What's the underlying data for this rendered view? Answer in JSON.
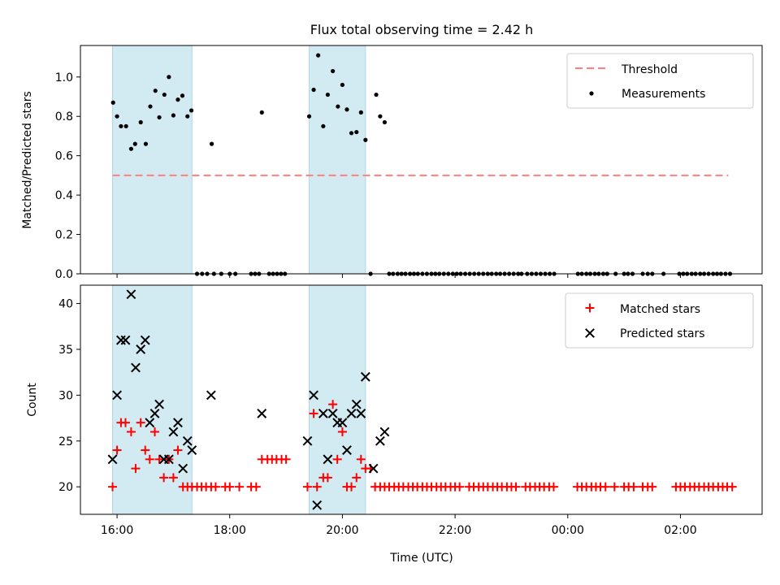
{
  "title": "Flux total observing time = 2.42 h",
  "colors": {
    "threshold": "#ff7f7f",
    "measurement": "#000000",
    "matched": "#ff0000",
    "predicted": "#000000",
    "shade": "#add8e6"
  },
  "x_axis": {
    "label": "Time (UTC)",
    "ticks": [
      {
        "h": 16,
        "label": "16:00"
      },
      {
        "h": 18,
        "label": "18:00"
      },
      {
        "h": 20,
        "label": "20:00"
      },
      {
        "h": 22,
        "label": "22:00"
      },
      {
        "h": 24,
        "label": "00:00"
      },
      {
        "h": 26,
        "label": "02:00"
      }
    ],
    "range": [
      15.35,
      27.45
    ]
  },
  "chart_data": [
    {
      "type": "scatter",
      "ylabel": "Matched/Predicted stars",
      "ylim": [
        0,
        1.16
      ],
      "yticks": [
        "0.0",
        "0.2",
        "0.4",
        "0.6",
        "0.8",
        "1.0"
      ],
      "yticks_values": [
        0,
        0.2,
        0.4,
        0.6,
        0.8,
        1.0
      ],
      "shaded_intervals": [
        [
          15.92,
          17.33
        ],
        [
          19.41,
          20.41
        ]
      ],
      "legend_position": "top-right",
      "threshold": {
        "name": "Threshold",
        "y": 0.5,
        "x": [
          15.92,
          26.85
        ]
      },
      "measurements": {
        "name": "Measurements",
        "points": [
          [
            15.93,
            0.87
          ],
          [
            16.0,
            0.8
          ],
          [
            16.07,
            0.75
          ],
          [
            16.16,
            0.75
          ],
          [
            16.25,
            0.635
          ],
          [
            16.32,
            0.66
          ],
          [
            16.42,
            0.77
          ],
          [
            16.51,
            0.66
          ],
          [
            16.59,
            0.85
          ],
          [
            16.68,
            0.93
          ],
          [
            16.75,
            0.795
          ],
          [
            16.84,
            0.91
          ],
          [
            16.92,
            1.0
          ],
          [
            17.0,
            0.805
          ],
          [
            17.08,
            0.885
          ],
          [
            17.16,
            0.905
          ],
          [
            17.25,
            0.8
          ],
          [
            17.32,
            0.83
          ],
          [
            17.68,
            0.66
          ],
          [
            18.57,
            0.82
          ],
          [
            19.41,
            0.8
          ],
          [
            19.49,
            0.935
          ],
          [
            19.57,
            1.11
          ],
          [
            19.66,
            0.75
          ],
          [
            19.74,
            0.91
          ],
          [
            19.83,
            1.03
          ],
          [
            19.92,
            0.85
          ],
          [
            20.0,
            0.96
          ],
          [
            20.08,
            0.835
          ],
          [
            20.16,
            0.715
          ],
          [
            20.25,
            0.72
          ],
          [
            20.33,
            0.82
          ],
          [
            20.41,
            0.68
          ],
          [
            20.6,
            0.91
          ],
          [
            20.67,
            0.8
          ],
          [
            20.75,
            0.77
          ]
        ],
        "zeros": [
          17.42,
          17.51,
          17.6,
          17.72,
          17.85,
          18.0,
          18.1,
          18.38,
          18.45,
          18.52,
          18.7,
          18.77,
          18.84,
          18.91,
          18.98,
          20.5,
          20.83,
          20.9,
          20.98,
          21.05,
          21.12,
          21.2,
          21.27,
          21.34,
          21.42,
          21.5,
          21.58,
          21.65,
          21.72,
          21.8,
          21.88,
          21.96,
          22.03,
          22.1,
          22.18,
          22.26,
          22.34,
          22.42,
          22.5,
          22.58,
          22.65,
          22.73,
          22.8,
          22.88,
          22.96,
          23.04,
          23.12,
          23.18,
          23.28,
          23.36,
          23.44,
          23.52,
          23.6,
          23.68,
          23.76,
          24.18,
          24.25,
          24.33,
          24.4,
          24.48,
          24.55,
          24.63,
          24.7,
          24.85,
          25.0,
          25.07,
          25.15,
          25.33,
          25.42,
          25.5,
          25.7,
          25.98,
          26.05,
          26.12,
          26.2,
          26.27,
          26.35,
          26.42,
          26.5,
          26.58,
          26.65,
          26.72,
          26.8,
          26.88
        ]
      }
    },
    {
      "type": "scatter",
      "ylabel": "Count",
      "xlabel": "Time (UTC)",
      "ylim": [
        17,
        42
      ],
      "yticks": [
        "20",
        "25",
        "30",
        "35",
        "40"
      ],
      "yticks_values": [
        20,
        25,
        30,
        35,
        40
      ],
      "shaded_intervals": [
        [
          15.92,
          17.33
        ],
        [
          19.41,
          20.41
        ]
      ],
      "legend_position": "top-right",
      "series": [
        {
          "name": "Matched stars",
          "marker": "plus",
          "points": [
            [
              15.92,
              20
            ],
            [
              16.0,
              24
            ],
            [
              16.07,
              27
            ],
            [
              16.15,
              27
            ],
            [
              16.25,
              26
            ],
            [
              16.33,
              22
            ],
            [
              16.42,
              27
            ],
            [
              16.5,
              24
            ],
            [
              16.58,
              23
            ],
            [
              16.67,
              26
            ],
            [
              16.75,
              23
            ],
            [
              16.83,
              21
            ],
            [
              16.92,
              23
            ],
            [
              17.0,
              21
            ],
            [
              17.08,
              24
            ],
            [
              17.17,
              20
            ],
            [
              17.25,
              20
            ],
            [
              17.33,
              20
            ],
            [
              17.42,
              20
            ],
            [
              17.5,
              20
            ],
            [
              17.58,
              20
            ],
            [
              17.67,
              20
            ],
            [
              17.75,
              20
            ],
            [
              17.92,
              20
            ],
            [
              18.0,
              20
            ],
            [
              18.17,
              20
            ],
            [
              18.38,
              20
            ],
            [
              18.47,
              20
            ],
            [
              18.57,
              23
            ],
            [
              18.67,
              23
            ],
            [
              18.75,
              23
            ],
            [
              18.83,
              23
            ],
            [
              18.92,
              23
            ],
            [
              19.0,
              23
            ],
            [
              19.38,
              20
            ],
            [
              19.49,
              28
            ],
            [
              19.55,
              20
            ],
            [
              19.66,
              21
            ],
            [
              19.74,
              21
            ],
            [
              19.83,
              29
            ],
            [
              19.91,
              23
            ],
            [
              20.0,
              26
            ],
            [
              20.08,
              20
            ],
            [
              20.16,
              20
            ],
            [
              20.25,
              21
            ],
            [
              20.33,
              23
            ],
            [
              20.41,
              22
            ],
            [
              20.5,
              22
            ],
            [
              20.58,
              20
            ],
            [
              20.67,
              20
            ],
            [
              20.75,
              20
            ],
            [
              20.83,
              20
            ],
            [
              20.92,
              20
            ],
            [
              21.0,
              20
            ],
            [
              21.08,
              20
            ],
            [
              21.17,
              20
            ],
            [
              21.25,
              20
            ],
            [
              21.33,
              20
            ],
            [
              21.42,
              20
            ],
            [
              21.5,
              20
            ],
            [
              21.58,
              20
            ],
            [
              21.67,
              20
            ],
            [
              21.75,
              20
            ],
            [
              21.83,
              20
            ],
            [
              21.92,
              20
            ],
            [
              22.0,
              20
            ],
            [
              22.08,
              20
            ],
            [
              22.25,
              20
            ],
            [
              22.33,
              20
            ],
            [
              22.42,
              20
            ],
            [
              22.5,
              20
            ],
            [
              22.58,
              20
            ],
            [
              22.67,
              20
            ],
            [
              22.75,
              20
            ],
            [
              22.83,
              20
            ],
            [
              22.92,
              20
            ],
            [
              23.0,
              20
            ],
            [
              23.08,
              20
            ],
            [
              23.25,
              20
            ],
            [
              23.33,
              20
            ],
            [
              23.42,
              20
            ],
            [
              23.5,
              20
            ],
            [
              23.58,
              20
            ],
            [
              23.67,
              20
            ],
            [
              23.75,
              20
            ],
            [
              24.17,
              20
            ],
            [
              24.25,
              20
            ],
            [
              24.33,
              20
            ],
            [
              24.42,
              20
            ],
            [
              24.5,
              20
            ],
            [
              24.58,
              20
            ],
            [
              24.67,
              20
            ],
            [
              24.83,
              20
            ],
            [
              25.0,
              20
            ],
            [
              25.08,
              20
            ],
            [
              25.17,
              20
            ],
            [
              25.33,
              20
            ],
            [
              25.42,
              20
            ],
            [
              25.5,
              20
            ],
            [
              25.92,
              20
            ],
            [
              26.0,
              20
            ],
            [
              26.08,
              20
            ],
            [
              26.17,
              20
            ],
            [
              26.25,
              20
            ],
            [
              26.33,
              20
            ],
            [
              26.42,
              20
            ],
            [
              26.5,
              20
            ],
            [
              26.58,
              20
            ],
            [
              26.67,
              20
            ],
            [
              26.75,
              20
            ],
            [
              26.83,
              20
            ],
            [
              26.92,
              20
            ]
          ]
        },
        {
          "name": "Predicted stars",
          "marker": "x",
          "points": [
            [
              15.92,
              23
            ],
            [
              16.0,
              30
            ],
            [
              16.07,
              36
            ],
            [
              16.15,
              36
            ],
            [
              16.25,
              41
            ],
            [
              16.33,
              33
            ],
            [
              16.42,
              35
            ],
            [
              16.5,
              36
            ],
            [
              16.58,
              27
            ],
            [
              16.67,
              28
            ],
            [
              16.75,
              29
            ],
            [
              16.83,
              23
            ],
            [
              16.92,
              23
            ],
            [
              17.0,
              26
            ],
            [
              17.08,
              27
            ],
            [
              17.17,
              22
            ],
            [
              17.25,
              25
            ],
            [
              17.33,
              24
            ],
            [
              17.67,
              30
            ],
            [
              18.57,
              28
            ],
            [
              19.38,
              25
            ],
            [
              19.49,
              30
            ],
            [
              19.55,
              18
            ],
            [
              19.66,
              28
            ],
            [
              19.74,
              23
            ],
            [
              19.83,
              28
            ],
            [
              19.91,
              27
            ],
            [
              20.0,
              27
            ],
            [
              20.08,
              24
            ],
            [
              20.16,
              28
            ],
            [
              20.25,
              29
            ],
            [
              20.33,
              28
            ],
            [
              20.41,
              32
            ],
            [
              20.55,
              22
            ],
            [
              20.67,
              25
            ],
            [
              20.75,
              26
            ]
          ]
        }
      ]
    }
  ]
}
